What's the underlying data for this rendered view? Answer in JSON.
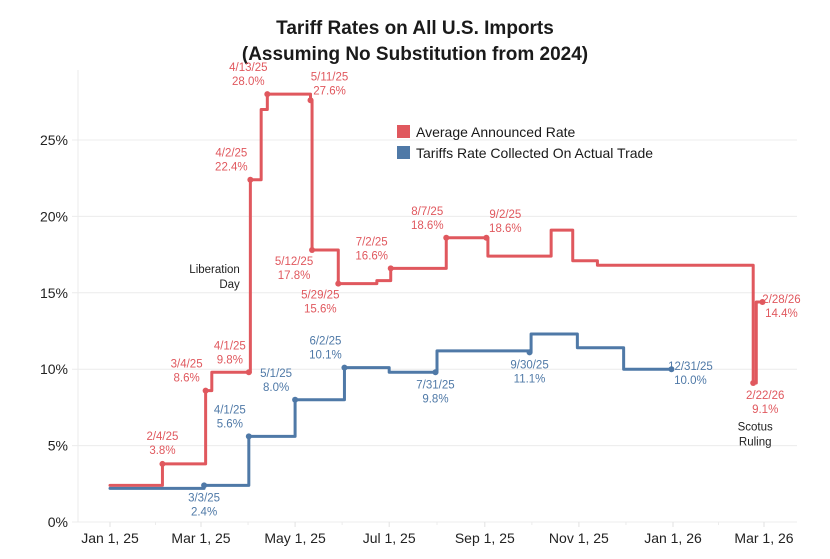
{
  "chart_data": {
    "type": "line",
    "step": true,
    "title": "Tariff Rates on All U.S. Imports",
    "subtitle": "(Assuming No Substitution from 2024)",
    "xlabel": "",
    "ylabel": "",
    "x_range": [
      "2024-12-25",
      "2026-03-18"
    ],
    "ylim": [
      0,
      28.5
    ],
    "grid": true,
    "legend_position": "top-center",
    "x_ticks": [
      {
        "date": "2025-01-01",
        "label": "Jan 1, 25"
      },
      {
        "date": "2025-03-01",
        "label": "Mar 1, 25"
      },
      {
        "date": "2025-05-01",
        "label": "May 1, 25"
      },
      {
        "date": "2025-07-01",
        "label": "Jul 1, 25"
      },
      {
        "date": "2025-09-01",
        "label": "Sep 1, 25"
      },
      {
        "date": "2025-11-01",
        "label": "Nov 1, 25"
      },
      {
        "date": "2026-01-01",
        "label": "Jan 1, 26"
      },
      {
        "date": "2026-03-01",
        "label": "Mar 1, 26"
      }
    ],
    "y_ticks": [
      {
        "value": 0,
        "label": "0%"
      },
      {
        "value": 5,
        "label": "5%"
      },
      {
        "value": 10,
        "label": "10%"
      },
      {
        "value": 15,
        "label": "15%"
      },
      {
        "value": 20,
        "label": "20%"
      },
      {
        "value": 25,
        "label": "25%"
      }
    ],
    "series": [
      {
        "name": "Average Announced Rate",
        "color": "#e0585e",
        "points": [
          {
            "date": "2025-01-01",
            "value": 2.4
          },
          {
            "date": "2025-02-04",
            "value": 3.8
          },
          {
            "date": "2025-03-04",
            "value": 8.6
          },
          {
            "date": "2025-03-08",
            "value": 9.8
          },
          {
            "date": "2025-04-01",
            "value": 9.8
          },
          {
            "date": "2025-04-02",
            "value": 22.4
          },
          {
            "date": "2025-04-09",
            "value": 27.0
          },
          {
            "date": "2025-04-13",
            "value": 28.0
          },
          {
            "date": "2025-05-08",
            "value": 28.0
          },
          {
            "date": "2025-05-11",
            "value": 27.6
          },
          {
            "date": "2025-05-12",
            "value": 17.8
          },
          {
            "date": "2025-05-29",
            "value": 15.6
          },
          {
            "date": "2025-06-23",
            "value": 15.8
          },
          {
            "date": "2025-07-02",
            "value": 16.6
          },
          {
            "date": "2025-08-07",
            "value": 18.6
          },
          {
            "date": "2025-09-02",
            "value": 18.6
          },
          {
            "date": "2025-09-03",
            "value": 17.4
          },
          {
            "date": "2025-10-14",
            "value": 19.1
          },
          {
            "date": "2025-10-28",
            "value": 17.1
          },
          {
            "date": "2025-11-13",
            "value": 16.8
          },
          {
            "date": "2026-02-20",
            "value": 16.8
          },
          {
            "date": "2026-02-22",
            "value": 9.1
          },
          {
            "date": "2026-02-24",
            "value": 14.4
          },
          {
            "date": "2026-02-28",
            "value": 14.4
          }
        ],
        "annotations": [
          {
            "date": "2025-02-04",
            "value": 3.8,
            "label_date": "2/4/25",
            "label_value": "3.8%",
            "pos": "above"
          },
          {
            "date": "2025-03-04",
            "value": 8.6,
            "label_date": "3/4/25",
            "label_value": "8.6%",
            "pos": "above-left"
          },
          {
            "date": "2025-04-01",
            "value": 9.8,
            "label_date": "4/1/25",
            "label_value": "9.8%",
            "pos": "above-left"
          },
          {
            "date": "2025-04-02",
            "value": 22.4,
            "label_date": "4/2/25",
            "label_value": "22.4%",
            "pos": "above-left"
          },
          {
            "date": "2025-04-13",
            "value": 28.0,
            "label_date": "4/13/25",
            "label_value": "28.0%",
            "pos": "above-left"
          },
          {
            "date": "2025-05-11",
            "value": 27.6,
            "label_date": "5/11/25",
            "label_value": "27.6%",
            "pos": "above-right"
          },
          {
            "date": "2025-05-12",
            "value": 17.8,
            "label_date": "5/12/25",
            "label_value": "17.8%",
            "pos": "below-left"
          },
          {
            "date": "2025-05-29",
            "value": 15.6,
            "label_date": "5/29/25",
            "label_value": "15.6%",
            "pos": "below-left"
          },
          {
            "date": "2025-07-02",
            "value": 16.6,
            "label_date": "7/2/25",
            "label_value": "16.6%",
            "pos": "above-left"
          },
          {
            "date": "2025-08-07",
            "value": 18.6,
            "label_date": "8/7/25",
            "label_value": "18.6%",
            "pos": "above-left"
          },
          {
            "date": "2025-09-02",
            "value": 18.6,
            "label_date": "9/2/25",
            "label_value": "18.6%",
            "pos": "above-right"
          },
          {
            "date": "2026-02-22",
            "value": 9.1,
            "label_date": "2/22/26",
            "label_value": "9.1%",
            "pos": "below-right"
          },
          {
            "date": "2026-02-28",
            "value": 14.4,
            "label_date": "2/28/26",
            "label_value": "14.4%",
            "pos": "right"
          }
        ]
      },
      {
        "name": "Tariffs Rate Collected On Actual Trade",
        "color": "#4f79a7",
        "points": [
          {
            "date": "2025-01-01",
            "value": 2.2
          },
          {
            "date": "2025-03-03",
            "value": 2.4
          },
          {
            "date": "2025-03-31",
            "value": 2.4
          },
          {
            "date": "2025-04-01",
            "value": 5.6
          },
          {
            "date": "2025-05-01",
            "value": 8.0
          },
          {
            "date": "2025-06-02",
            "value": 10.1
          },
          {
            "date": "2025-06-30",
            "value": 10.1
          },
          {
            "date": "2025-07-01",
            "value": 9.8
          },
          {
            "date": "2025-07-31",
            "value": 9.8
          },
          {
            "date": "2025-08-01",
            "value": 11.2
          },
          {
            "date": "2025-08-31",
            "value": 11.2
          },
          {
            "date": "2025-09-30",
            "value": 11.1
          },
          {
            "date": "2025-10-01",
            "value": 12.3
          },
          {
            "date": "2025-10-31",
            "value": 11.4
          },
          {
            "date": "2025-11-30",
            "value": 10.0
          },
          {
            "date": "2025-12-31",
            "value": 10.0
          }
        ],
        "annotations": [
          {
            "date": "2025-03-03",
            "value": 2.4,
            "label_date": "3/3/25",
            "label_value": "2.4%",
            "pos": "below"
          },
          {
            "date": "2025-04-01",
            "value": 5.6,
            "label_date": "4/1/25",
            "label_value": "5.6%",
            "pos": "above-left"
          },
          {
            "date": "2025-05-01",
            "value": 8.0,
            "label_date": "5/1/25",
            "label_value": "8.0%",
            "pos": "above-left"
          },
          {
            "date": "2025-06-02",
            "value": 10.1,
            "label_date": "6/2/25",
            "label_value": "10.1%",
            "pos": "above-left"
          },
          {
            "date": "2025-07-31",
            "value": 9.8,
            "label_date": "7/31/25",
            "label_value": "9.8%",
            "pos": "below"
          },
          {
            "date": "2025-09-30",
            "value": 11.1,
            "label_date": "9/30/25",
            "label_value": "11.1%",
            "pos": "below"
          },
          {
            "date": "2025-12-31",
            "value": 10.0,
            "label_date": "12/31/25",
            "label_value": "10.0%",
            "pos": "right"
          }
        ]
      }
    ],
    "notes": [
      {
        "text_lines": [
          "Liberation",
          "Day"
        ],
        "date": "2025-04-01",
        "value": 16.3
      },
      {
        "text_lines": [
          "Scotus",
          "Ruling"
        ],
        "date": "2026-02-22",
        "value": 6.0
      }
    ]
  }
}
